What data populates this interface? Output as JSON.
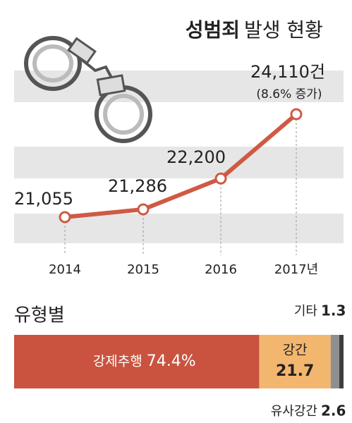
{
  "chart_data": [
    {
      "type": "line",
      "title": "성범죄",
      "subtitle": "발생 현황",
      "categories": [
        "2014",
        "2015",
        "2016",
        "2017년"
      ],
      "values": [
        21055,
        21286,
        22200,
        24110
      ],
      "value_labels": [
        "21,055",
        "21,286",
        "22,200",
        "24,110건"
      ],
      "annotation": "(8.6% 증가)",
      "color": "#cf5a44"
    },
    {
      "type": "stacked-bar",
      "title": "유형별",
      "series": [
        {
          "name": "강제추행",
          "color": "#c9533f",
          "values": [
            74.4
          ],
          "value_labels": [
            "74.4%"
          ]
        },
        {
          "name": "강간",
          "color": "#f3b66f",
          "values": [
            21.7
          ]
        },
        {
          "name": "유사강간",
          "color": "#8f8f8f",
          "values": [
            2.6
          ]
        },
        {
          "name": "기타",
          "color": "#3e3e3e",
          "values": [
            1.3
          ]
        }
      ]
    }
  ]
}
